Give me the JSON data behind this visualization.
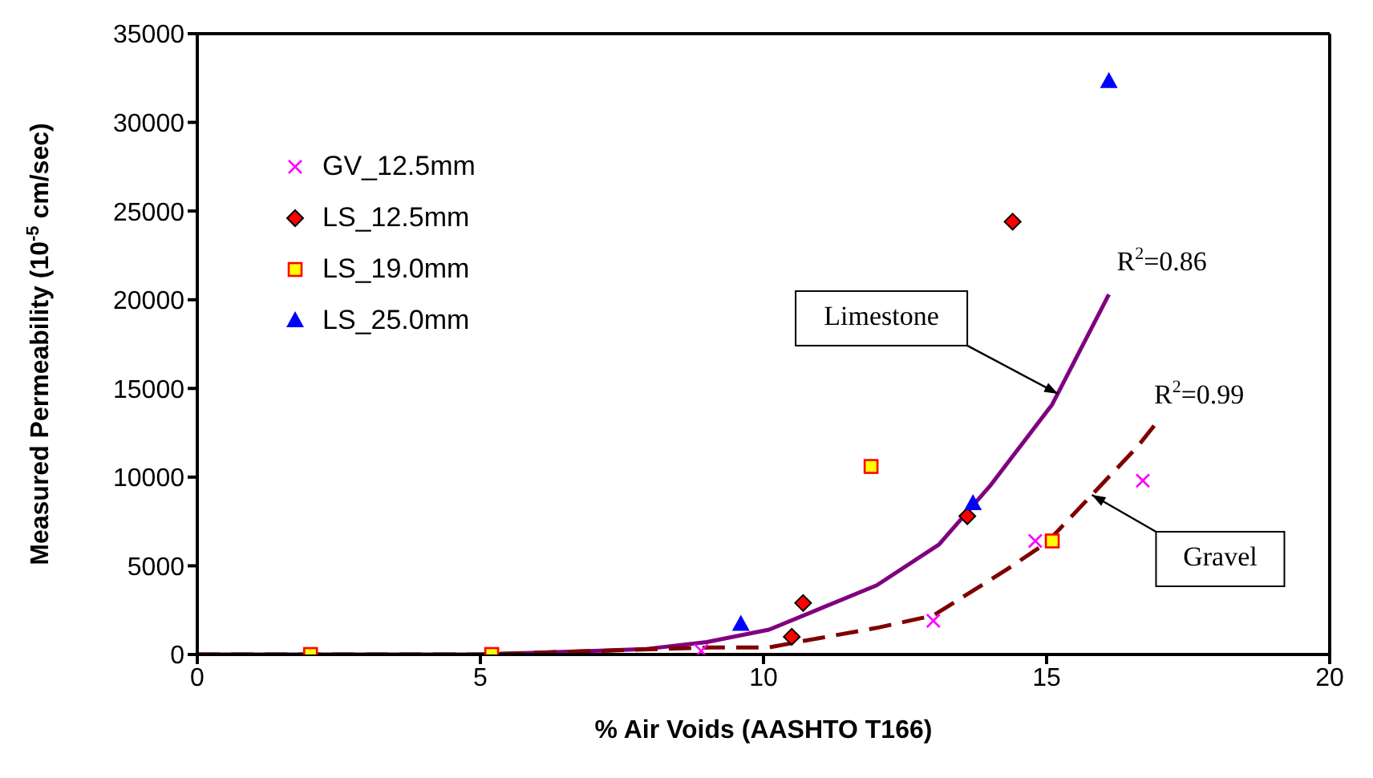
{
  "chart_data": {
    "type": "scatter",
    "xlabel": "% Air Voids (AASHTO T166)",
    "ylabel": "Measured Permeability (10$^{-5}$ cm/sec)",
    "xlim": [
      0,
      20
    ],
    "xticks": [
      0,
      5,
      10,
      15,
      20
    ],
    "ylim": [
      0,
      35000
    ],
    "yticks": [
      0,
      5000,
      10000,
      15000,
      20000,
      25000,
      30000,
      35000
    ],
    "legend": "top left",
    "series": [
      {
        "name": "GV_12.5mm",
        "marker": "cross",
        "color": "#ff00ff",
        "x": [
          8.9,
          13.0,
          14.8,
          16.7
        ],
        "values": [
          200,
          1900,
          6400,
          9800
        ]
      },
      {
        "name": "LS_12.5mm",
        "marker": "diamond",
        "color": "#ff0000",
        "x": [
          10.5,
          10.7,
          13.6,
          14.4
        ],
        "values": [
          1000,
          2900,
          7800,
          24400
        ]
      },
      {
        "name": "LS_19.0mm",
        "marker": "square",
        "color": "#ffff00",
        "x": [
          2.0,
          5.2,
          11.9,
          15.1
        ],
        "values": [
          0,
          0,
          10600,
          6400
        ]
      },
      {
        "name": "LS_25.0mm",
        "marker": "triangle",
        "color": "#0000ff",
        "x": [
          9.6,
          13.7,
          16.1
        ],
        "values": [
          1700,
          8500,
          32300
        ]
      },
      {
        "type": "line",
        "marker": "none",
        "line_style": "solid",
        "color": "#800080",
        "x": [
          0,
          5,
          7.9,
          9,
          10.1,
          12,
          13.1,
          14,
          15.1,
          16.1
        ],
        "values": [
          0,
          0,
          300,
          700,
          1400,
          3900,
          6200,
          9500,
          14100,
          20300
        ]
      },
      {
        "type": "line",
        "marker": "none",
        "line_style": "dashed",
        "color": "#800000",
        "x": [
          0,
          5,
          9.1,
          10.1,
          10.6,
          12,
          13,
          14.3,
          15,
          16.6,
          16.9
        ],
        "values": [
          0,
          0,
          400,
          400,
          700,
          1500,
          2200,
          4800,
          6300,
          11700,
          12900
        ]
      }
    ],
    "annotations": [
      {
        "text": "Limestone",
        "x": 15.2,
        "y": 14700
      },
      {
        "text": "Gravel",
        "x": 15.8,
        "y": 9000
      },
      {
        "text": "R$^{2}$=0.86",
        "x": 16.1,
        "y": 20300
      },
      {
        "text": "R$^{2}$=0.99",
        "x": 16.9,
        "y": 12900
      }
    ]
  }
}
